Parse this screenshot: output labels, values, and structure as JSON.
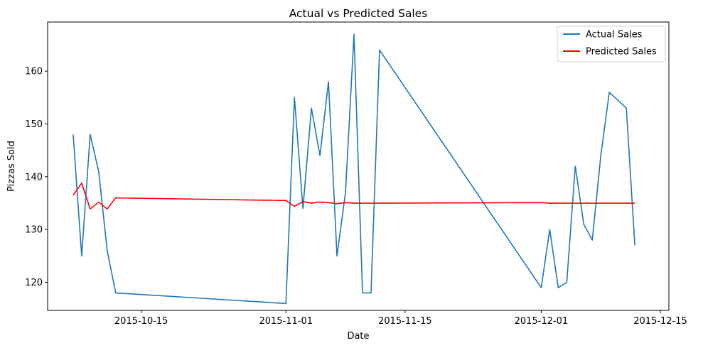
{
  "chart_data": {
    "type": "line",
    "title": "Actual vs Predicted Sales",
    "xlabel": "Date",
    "ylabel": "Pizzas Sold",
    "x_axis_type": "date",
    "xlim": [
      "2015-10-04",
      "2015-12-16"
    ],
    "ylim": [
      114.7,
      169.3
    ],
    "x_ticks": [
      "2015-10-15",
      "2015-11-01",
      "2015-11-15",
      "2015-12-01",
      "2015-12-15"
    ],
    "y_ticks": [
      120,
      130,
      140,
      150,
      160
    ],
    "grid": false,
    "legend_position": "top-right",
    "series": [
      {
        "name": "Actual Sales",
        "color": "#1f77b4",
        "points": [
          {
            "x": "2015-10-07",
            "y": 148
          },
          {
            "x": "2015-10-08",
            "y": 125
          },
          {
            "x": "2015-10-09",
            "y": 148
          },
          {
            "x": "2015-10-10",
            "y": 141
          },
          {
            "x": "2015-10-11",
            "y": 126
          },
          {
            "x": "2015-10-12",
            "y": 118
          },
          {
            "x": "2015-11-01",
            "y": 116
          },
          {
            "x": "2015-11-02",
            "y": 155
          },
          {
            "x": "2015-11-03",
            "y": 134
          },
          {
            "x": "2015-11-04",
            "y": 153
          },
          {
            "x": "2015-11-05",
            "y": 144
          },
          {
            "x": "2015-11-06",
            "y": 158
          },
          {
            "x": "2015-11-07",
            "y": 125
          },
          {
            "x": "2015-11-08",
            "y": 137
          },
          {
            "x": "2015-11-09",
            "y": 167
          },
          {
            "x": "2015-11-10",
            "y": 118
          },
          {
            "x": "2015-11-11",
            "y": 118
          },
          {
            "x": "2015-11-12",
            "y": 164
          },
          {
            "x": "2015-12-01",
            "y": 119
          },
          {
            "x": "2015-12-02",
            "y": 130
          },
          {
            "x": "2015-12-03",
            "y": 119
          },
          {
            "x": "2015-12-04",
            "y": 120
          },
          {
            "x": "2015-12-05",
            "y": 142
          },
          {
            "x": "2015-12-06",
            "y": 131
          },
          {
            "x": "2015-12-07",
            "y": 128
          },
          {
            "x": "2015-12-08",
            "y": 144
          },
          {
            "x": "2015-12-09",
            "y": 156
          },
          {
            "x": "2015-12-11",
            "y": 153
          },
          {
            "x": "2015-12-12",
            "y": 127
          }
        ]
      },
      {
        "name": "Predicted Sales",
        "color": "#ff0000",
        "points": [
          {
            "x": "2015-10-07",
            "y": 136.5
          },
          {
            "x": "2015-10-08",
            "y": 138.8
          },
          {
            "x": "2015-10-09",
            "y": 133.9
          },
          {
            "x": "2015-10-10",
            "y": 135.2
          },
          {
            "x": "2015-10-11",
            "y": 133.9
          },
          {
            "x": "2015-10-12",
            "y": 136.0
          },
          {
            "x": "2015-11-01",
            "y": 135.5
          },
          {
            "x": "2015-11-02",
            "y": 134.4
          },
          {
            "x": "2015-11-03",
            "y": 135.3
          },
          {
            "x": "2015-11-04",
            "y": 135.0
          },
          {
            "x": "2015-11-05",
            "y": 135.2
          },
          {
            "x": "2015-11-06",
            "y": 135.1
          },
          {
            "x": "2015-11-07",
            "y": 134.9
          },
          {
            "x": "2015-11-08",
            "y": 135.1
          },
          {
            "x": "2015-11-09",
            "y": 135.0
          },
          {
            "x": "2015-11-10",
            "y": 135.0
          },
          {
            "x": "2015-11-11",
            "y": 135.0
          },
          {
            "x": "2015-11-12",
            "y": 135.0
          },
          {
            "x": "2015-12-01",
            "y": 135.1
          },
          {
            "x": "2015-12-02",
            "y": 135.0
          },
          {
            "x": "2015-12-03",
            "y": 135.0
          },
          {
            "x": "2015-12-04",
            "y": 135.0
          },
          {
            "x": "2015-12-05",
            "y": 135.0
          },
          {
            "x": "2015-12-06",
            "y": 135.0
          },
          {
            "x": "2015-12-07",
            "y": 135.0
          },
          {
            "x": "2015-12-08",
            "y": 135.0
          },
          {
            "x": "2015-12-09",
            "y": 135.0
          },
          {
            "x": "2015-12-11",
            "y": 135.0
          },
          {
            "x": "2015-12-12",
            "y": 135.0
          }
        ]
      }
    ]
  }
}
